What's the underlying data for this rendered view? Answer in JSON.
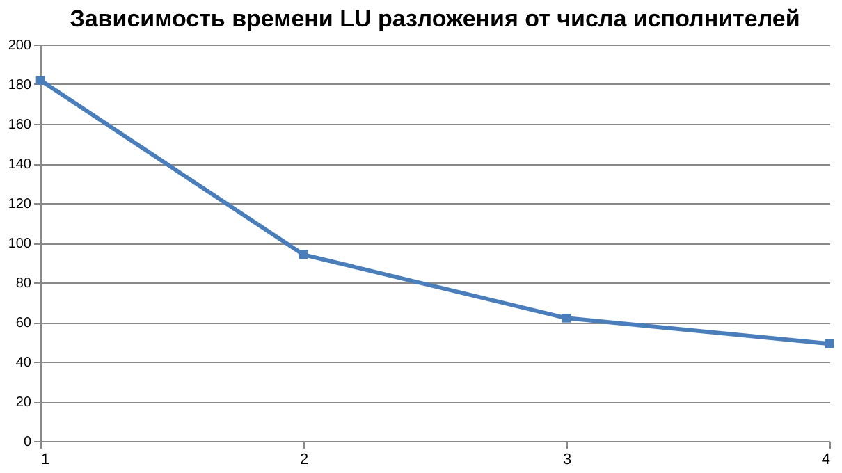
{
  "chart_data": {
    "type": "line",
    "title": "Зависимость времени LU разложения от числа исполнителей",
    "x": [
      1,
      2,
      3,
      4
    ],
    "series": [
      {
        "color": "#4a7ebb",
        "values": [
          182,
          94,
          62,
          49
        ]
      }
    ],
    "xlim": [
      1,
      4
    ],
    "xticks": [
      1,
      2,
      3,
      4
    ],
    "ylim": [
      0,
      200
    ],
    "yticks": [
      0,
      20,
      40,
      60,
      80,
      100,
      120,
      140,
      160,
      180,
      200
    ],
    "grid": "y",
    "marker": "square",
    "line_style": "solid"
  }
}
